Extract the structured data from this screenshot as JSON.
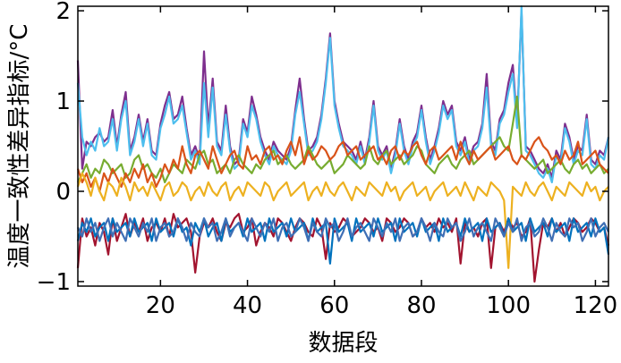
{
  "chart_data": {
    "type": "line",
    "title": "",
    "xlabel": "数据段",
    "ylabel": "温度一致性差异指标/°C",
    "xlim": [
      1,
      123
    ],
    "ylim": [
      -1.05,
      2.05
    ],
    "xticks": [
      20,
      40,
      60,
      80,
      100,
      120
    ],
    "yticks": [
      -1,
      0,
      1,
      2
    ],
    "xtick_labels": [
      "20",
      "40",
      "60",
      "80",
      "100",
      "120"
    ],
    "ytick_labels": [
      "−1",
      "0",
      "1",
      "2"
    ],
    "grid": false,
    "legend": "none",
    "colors": [
      "#7e2f8e",
      "#4dbeee",
      "#77ac30",
      "#a2142f",
      "#d95319",
      "#edb120",
      "#0072bd",
      "#3f6fb5"
    ],
    "series": [
      {
        "values": [
          1.45,
          0.25,
          0.55,
          0.5,
          0.6,
          0.65,
          0.55,
          0.6,
          0.9,
          0.5,
          0.85,
          1.1,
          0.45,
          0.6,
          0.85,
          0.55,
          0.8,
          0.45,
          0.4,
          0.75,
          0.95,
          1.1,
          0.8,
          0.85,
          1.05,
          0.7,
          0.4,
          0.5,
          0.35,
          1.55,
          0.7,
          1.25,
          0.55,
          0.45,
          0.95,
          0.5,
          0.3,
          0.35,
          0.8,
          0.65,
          1.05,
          0.85,
          0.6,
          0.45,
          0.35,
          0.55,
          0.45,
          0.4,
          0.35,
          0.5,
          0.9,
          1.25,
          0.8,
          0.45,
          0.5,
          0.6,
          0.85,
          1.25,
          1.75,
          1.0,
          0.75,
          0.55,
          0.5,
          0.45,
          0.35,
          0.55,
          0.35,
          0.6,
          1.0,
          0.5,
          0.4,
          0.5,
          0.25,
          0.45,
          0.8,
          0.5,
          0.35,
          0.55,
          0.65,
          0.95,
          0.6,
          0.35,
          0.5,
          0.7,
          1.0,
          0.85,
          0.95,
          0.55,
          0.45,
          0.6,
          0.35,
          0.5,
          0.55,
          0.75,
          1.3,
          0.55,
          0.45,
          0.8,
          0.9,
          1.2,
          1.4,
          0.75,
          2.0,
          0.5,
          0.45,
          0.35,
          0.25,
          0.2,
          0.3,
          0.15,
          0.45,
          0.35,
          0.75,
          0.6,
          0.35,
          0.5,
          0.45,
          0.85,
          0.35,
          0.3,
          0.45,
          0.4,
          0.6
        ]
      },
      {
        "values": [
          1.2,
          0.6,
          0.4,
          0.55,
          0.45,
          0.7,
          0.5,
          0.55,
          0.8,
          0.45,
          0.8,
          1.0,
          0.4,
          0.55,
          0.8,
          0.5,
          0.75,
          0.4,
          0.35,
          0.7,
          0.85,
          1.05,
          0.75,
          0.8,
          0.95,
          0.65,
          0.35,
          0.45,
          0.3,
          1.2,
          0.6,
          1.15,
          0.5,
          0.4,
          0.85,
          0.45,
          0.25,
          0.3,
          0.75,
          0.6,
          0.95,
          0.8,
          0.55,
          0.4,
          0.3,
          0.5,
          0.4,
          0.35,
          0.3,
          0.45,
          0.85,
          1.1,
          0.75,
          0.4,
          0.45,
          0.55,
          0.8,
          1.2,
          1.7,
          0.95,
          0.7,
          0.5,
          0.45,
          0.4,
          0.3,
          0.5,
          0.3,
          0.55,
          0.95,
          0.45,
          0.35,
          0.45,
          0.2,
          0.4,
          0.75,
          0.45,
          0.3,
          0.5,
          0.6,
          0.9,
          0.55,
          0.3,
          0.45,
          0.65,
          0.95,
          0.8,
          0.9,
          0.5,
          0.4,
          0.55,
          0.3,
          0.45,
          0.5,
          0.7,
          1.15,
          0.5,
          0.4,
          0.75,
          0.85,
          1.1,
          1.3,
          0.7,
          2.05,
          0.45,
          0.4,
          0.3,
          0.2,
          0.15,
          0.25,
          0.1,
          0.4,
          0.3,
          0.7,
          0.55,
          0.3,
          0.45,
          0.4,
          0.8,
          0.3,
          0.25,
          0.4,
          0.35,
          0.6
        ]
      },
      {
        "values": [
          0.1,
          0.2,
          0.3,
          0.15,
          0.25,
          0.2,
          0.35,
          0.3,
          0.2,
          0.25,
          0.3,
          0.15,
          0.2,
          0.35,
          0.4,
          0.25,
          0.3,
          0.2,
          0.15,
          0.25,
          0.1,
          0.2,
          0.3,
          0.25,
          0.2,
          0.35,
          0.3,
          0.25,
          0.4,
          0.45,
          0.3,
          0.35,
          0.2,
          0.25,
          0.3,
          0.2,
          0.35,
          0.4,
          0.3,
          0.25,
          0.2,
          0.3,
          0.25,
          0.35,
          0.4,
          0.45,
          0.3,
          0.35,
          0.4,
          0.3,
          0.25,
          0.3,
          0.35,
          0.5,
          0.4,
          0.3,
          0.25,
          0.3,
          0.35,
          0.2,
          0.25,
          0.3,
          0.4,
          0.35,
          0.3,
          0.25,
          0.3,
          0.5,
          0.35,
          0.3,
          0.4,
          0.45,
          0.3,
          0.35,
          0.4,
          0.3,
          0.35,
          0.4,
          0.5,
          0.45,
          0.3,
          0.25,
          0.2,
          0.3,
          0.35,
          0.4,
          0.3,
          0.25,
          0.35,
          0.4,
          0.45,
          0.3,
          0.35,
          0.4,
          0.45,
          0.5,
          0.55,
          0.6,
          0.5,
          0.45,
          0.75,
          1.05,
          0.4,
          0.35,
          0.3,
          0.25,
          0.3,
          0.35,
          0.2,
          0.25,
          0.3,
          0.35,
          0.25,
          0.2,
          0.3,
          0.35,
          0.25,
          0.3,
          0.2,
          0.25,
          0.3,
          0.2,
          0.25
        ]
      },
      {
        "values": [
          -0.85,
          -0.3,
          -0.5,
          -0.4,
          -0.6,
          -0.35,
          -0.45,
          -0.7,
          -0.3,
          -0.55,
          -0.4,
          -0.25,
          -0.5,
          -0.35,
          -0.45,
          -0.3,
          -0.55,
          -0.4,
          -0.35,
          -0.45,
          -0.3,
          -0.5,
          -0.25,
          -0.4,
          -0.35,
          -0.3,
          -0.45,
          -0.9,
          -0.5,
          -0.35,
          -0.4,
          -0.3,
          -0.45,
          -0.55,
          -0.35,
          -0.4,
          -0.3,
          -0.25,
          -0.45,
          -0.4,
          -0.3,
          -0.6,
          -0.45,
          -0.35,
          -0.4,
          -0.5,
          -0.3,
          -0.35,
          -0.45,
          -0.55,
          -0.4,
          -0.3,
          -0.35,
          -0.45,
          -0.5,
          -0.3,
          -0.4,
          -0.75,
          -0.35,
          -0.45,
          -0.4,
          -0.3,
          -0.35,
          -0.5,
          -0.45,
          -0.4,
          -0.3,
          -0.35,
          -0.45,
          -0.4,
          -0.55,
          -0.3,
          -0.35,
          -0.45,
          -0.4,
          -0.3,
          -0.35,
          -0.5,
          -0.45,
          -0.3,
          -0.4,
          -0.35,
          -0.45,
          -0.3,
          -0.4,
          -0.35,
          -0.45,
          -0.3,
          -0.8,
          -0.35,
          -0.45,
          -0.4,
          -0.5,
          -0.35,
          -0.3,
          -0.85,
          -0.4,
          -0.35,
          -0.45,
          -0.3,
          -0.4,
          -0.35,
          -0.5,
          -0.45,
          -0.3,
          -1.0,
          -0.65,
          -0.35,
          -0.4,
          -0.3,
          -0.45,
          -0.35,
          -0.5,
          -0.4,
          -0.3,
          -0.35,
          -0.45,
          -0.4,
          -0.3,
          -0.35,
          -0.45,
          -0.4,
          -0.6
        ]
      },
      {
        "values": [
          0.25,
          0.1,
          0.2,
          0.05,
          0.15,
          0.0,
          0.2,
          0.1,
          0.25,
          0.15,
          0.05,
          0.2,
          0.1,
          0.25,
          0.15,
          0.3,
          0.1,
          0.2,
          0.05,
          0.15,
          0.3,
          0.2,
          0.35,
          0.25,
          0.5,
          0.3,
          0.2,
          0.4,
          0.45,
          0.35,
          0.25,
          0.5,
          0.35,
          0.2,
          0.3,
          0.4,
          0.45,
          0.3,
          0.25,
          0.5,
          0.35,
          0.4,
          0.3,
          0.45,
          0.5,
          0.35,
          0.4,
          0.3,
          0.45,
          0.55,
          0.4,
          0.6,
          0.3,
          0.45,
          0.35,
          0.4,
          0.5,
          0.45,
          0.35,
          0.4,
          0.5,
          0.55,
          0.4,
          0.45,
          0.5,
          0.35,
          0.4,
          0.45,
          0.5,
          0.35,
          0.4,
          0.3,
          0.45,
          0.5,
          0.35,
          0.45,
          0.4,
          0.5,
          0.55,
          0.4,
          0.3,
          0.45,
          0.5,
          0.35,
          0.4,
          0.45,
          0.5,
          0.35,
          0.55,
          0.4,
          0.3,
          0.45,
          0.35,
          0.4,
          0.45,
          0.5,
          0.35,
          0.4,
          0.45,
          0.5,
          0.35,
          0.3,
          0.4,
          0.35,
          0.45,
          0.55,
          0.6,
          0.5,
          0.45,
          0.35,
          0.4,
          0.3,
          0.45,
          0.35,
          0.4,
          0.55,
          0.3,
          0.35,
          0.4,
          0.45,
          0.3,
          0.25,
          0.2
        ]
      },
      {
        "values": [
          0.05,
          0.2,
          0.1,
          -0.05,
          0.15,
          0.0,
          -0.1,
          0.1,
          0.05,
          -0.05,
          0.15,
          0.05,
          -0.1,
          0.1,
          0.0,
          0.05,
          -0.05,
          0.1,
          0.0,
          -0.1,
          0.05,
          0.1,
          -0.05,
          0.0,
          0.1,
          0.05,
          -0.1,
          0.0,
          0.05,
          -0.05,
          0.1,
          0.0,
          -0.05,
          0.05,
          0.1,
          -0.1,
          0.0,
          0.05,
          -0.05,
          0.1,
          0.05,
          0.0,
          -0.05,
          0.1,
          0.05,
          -0.1,
          0.0,
          0.05,
          0.1,
          -0.05,
          0.0,
          0.05,
          0.1,
          -0.1,
          0.0,
          0.05,
          -0.05,
          0.1,
          0.0,
          -0.05,
          0.05,
          0.1,
          0.0,
          -0.1,
          0.05,
          0.0,
          -0.05,
          0.1,
          0.05,
          0.0,
          -0.05,
          0.1,
          0.0,
          0.05,
          -0.1,
          0.0,
          0.05,
          0.1,
          -0.05,
          0.0,
          0.05,
          -0.1,
          0.0,
          0.05,
          0.1,
          -0.05,
          0.0,
          0.05,
          -0.05,
          0.1,
          0.0,
          -0.1,
          0.05,
          0.0,
          -0.05,
          0.1,
          0.05,
          0.0,
          -0.1,
          -0.85,
          0.05,
          0.0,
          -0.05,
          0.1,
          0.0,
          -0.05,
          0.05,
          0.1,
          0.0,
          -0.1,
          0.05,
          0.0,
          -0.05,
          0.1,
          0.05,
          0.0,
          -0.05,
          0.1,
          0.0,
          0.05,
          -0.1,
          0.0,
          0.05
        ]
      },
      {
        "values": [
          -0.55,
          -0.35,
          -0.45,
          -0.3,
          -0.5,
          -0.4,
          -0.35,
          -0.55,
          -0.3,
          -0.45,
          -0.4,
          -0.35,
          -0.5,
          -0.3,
          -0.45,
          -0.4,
          -0.35,
          -0.55,
          -0.3,
          -0.45,
          -0.4,
          -0.35,
          -0.5,
          -0.3,
          -0.45,
          -0.4,
          -0.6,
          -0.35,
          -0.45,
          -0.3,
          -0.5,
          -0.4,
          -0.35,
          -0.55,
          -0.3,
          -0.45,
          -0.4,
          -0.35,
          -0.5,
          -0.3,
          -0.45,
          -0.4,
          -0.35,
          -0.55,
          -0.3,
          -0.45,
          -0.4,
          -0.35,
          -0.5,
          -0.3,
          -0.45,
          -0.4,
          -0.35,
          -0.55,
          -0.3,
          -0.45,
          -0.4,
          -0.35,
          -0.8,
          -0.3,
          -0.45,
          -0.4,
          -0.35,
          -0.55,
          -0.3,
          -0.45,
          -0.4,
          -0.35,
          -0.5,
          -0.3,
          -0.45,
          -0.4,
          -0.35,
          -0.55,
          -0.3,
          -0.45,
          -0.4,
          -0.35,
          -0.5,
          -0.3,
          -0.45,
          -0.4,
          -0.35,
          -0.55,
          -0.3,
          -0.45,
          -0.4,
          -0.35,
          -0.5,
          -0.3,
          -0.45,
          -0.4,
          -0.35,
          -0.55,
          -0.3,
          -0.45,
          -0.4,
          -0.35,
          -0.5,
          -0.3,
          -0.45,
          -0.4,
          -0.35,
          -0.55,
          -0.3,
          -0.45,
          -0.4,
          -0.35,
          -0.5,
          -0.3,
          -0.45,
          -0.4,
          -0.35,
          -0.55,
          -0.3,
          -0.45,
          -0.4,
          -0.35,
          -0.5,
          -0.3,
          -0.45,
          -0.4,
          -0.7
        ]
      },
      {
        "values": [
          -0.4,
          -0.5,
          -0.3,
          -0.45,
          -0.35,
          -0.55,
          -0.4,
          -0.3,
          -0.5,
          -0.35,
          -0.45,
          -0.55,
          -0.3,
          -0.4,
          -0.5,
          -0.35,
          -0.45,
          -0.3,
          -0.55,
          -0.4,
          -0.35,
          -0.5,
          -0.45,
          -0.3,
          -0.4,
          -0.55,
          -0.35,
          -0.45,
          -0.5,
          -0.3,
          -0.4,
          -0.35,
          -0.55,
          -0.45,
          -0.3,
          -0.5,
          -0.4,
          -0.35,
          -0.45,
          -0.55,
          -0.3,
          -0.4,
          -0.5,
          -0.35,
          -0.45,
          -0.3,
          -0.55,
          -0.4,
          -0.35,
          -0.5,
          -0.45,
          -0.3,
          -0.4,
          -0.55,
          -0.35,
          -0.45,
          -0.5,
          -0.3,
          -0.4,
          -0.35,
          -0.55,
          -0.45,
          -0.3,
          -0.5,
          -0.4,
          -0.35,
          -0.45,
          -0.55,
          -0.3,
          -0.4,
          -0.5,
          -0.35,
          -0.45,
          -0.3,
          -0.55,
          -0.4,
          -0.35,
          -0.5,
          -0.45,
          -0.3,
          -0.4,
          -0.55,
          -0.35,
          -0.45,
          -0.5,
          -0.3,
          -0.4,
          -0.35,
          -0.55,
          -0.45,
          -0.3,
          -0.5,
          -0.4,
          -0.35,
          -0.45,
          -0.55,
          -0.3,
          -0.4,
          -0.5,
          -0.35,
          -0.45,
          -0.3,
          -0.55,
          -0.4,
          -0.35,
          -0.5,
          -0.45,
          -0.3,
          -0.4,
          -0.55,
          -0.35,
          -0.45,
          -0.5,
          -0.3,
          -0.4,
          -0.35,
          -0.55,
          -0.45,
          -0.3,
          -0.5,
          -0.4,
          -0.35,
          -0.45
        ]
      }
    ]
  }
}
